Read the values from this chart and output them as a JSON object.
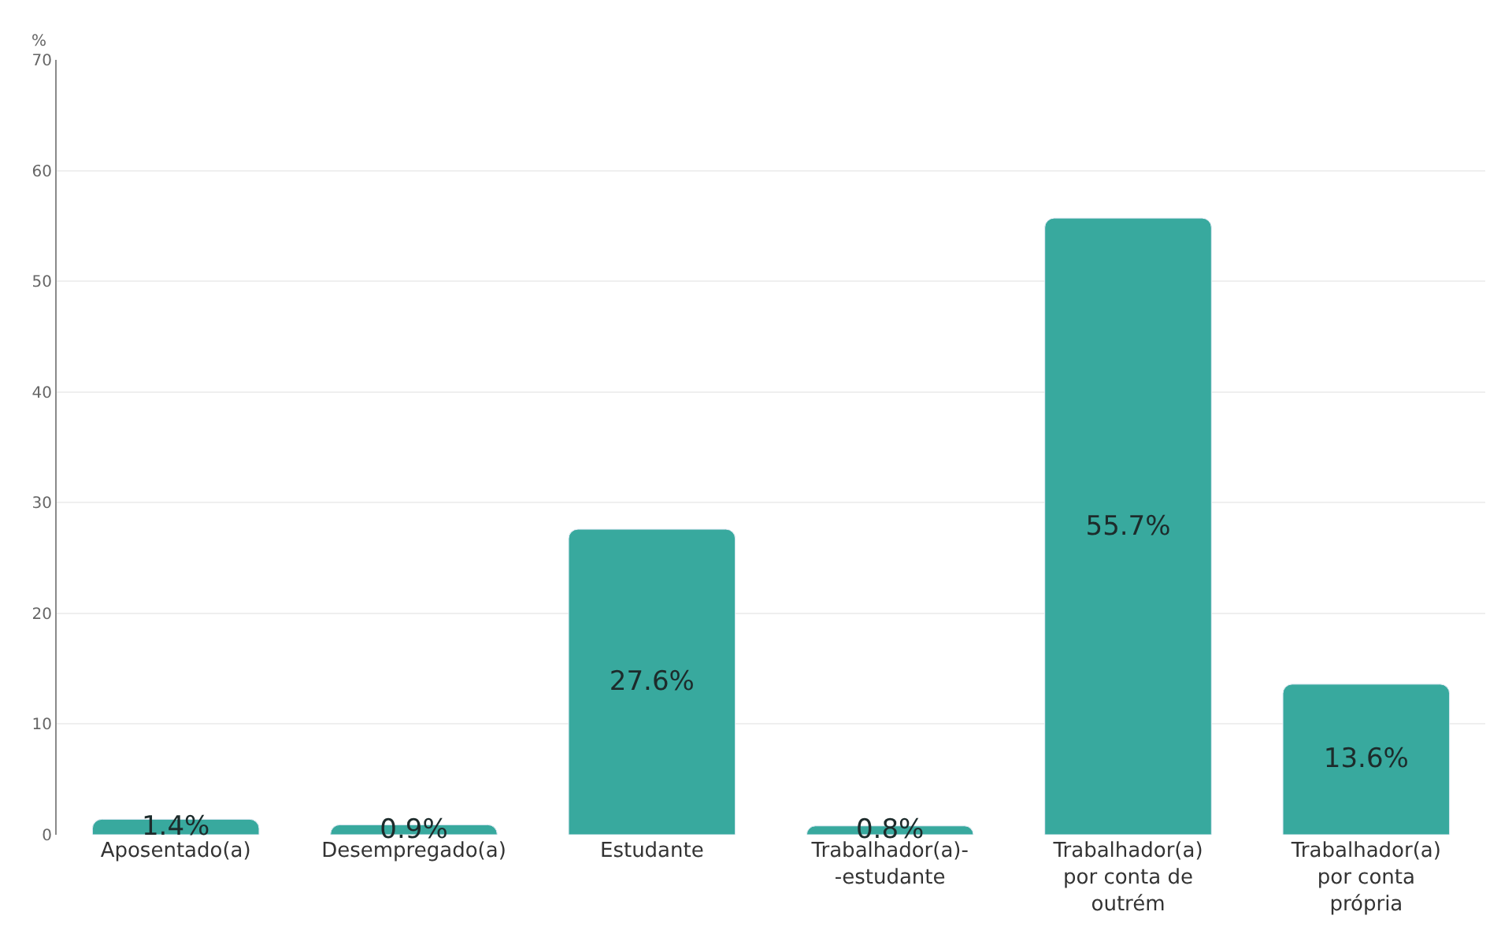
{
  "chart_data": {
    "type": "bar",
    "ylabel": "%",
    "categories": [
      "Aposentado(a)",
      "Desempregado(a)",
      "Estudante",
      "Trabalhador(a)- -estudante",
      "Trabalhador(a) por conta de outrém",
      "Trabalhador(a) por conta própria"
    ],
    "values": [
      1.4,
      0.9,
      27.6,
      0.8,
      55.7,
      13.6
    ],
    "value_labels": [
      "1.4%",
      "0.9%",
      "27.6%",
      "0.8%",
      "55.7%",
      "13.6%"
    ],
    "color": "#38a99e",
    "ylim": [
      0,
      70
    ],
    "yticks": [
      0,
      10,
      20,
      30,
      40,
      50,
      60,
      70
    ],
    "grid": "y"
  }
}
